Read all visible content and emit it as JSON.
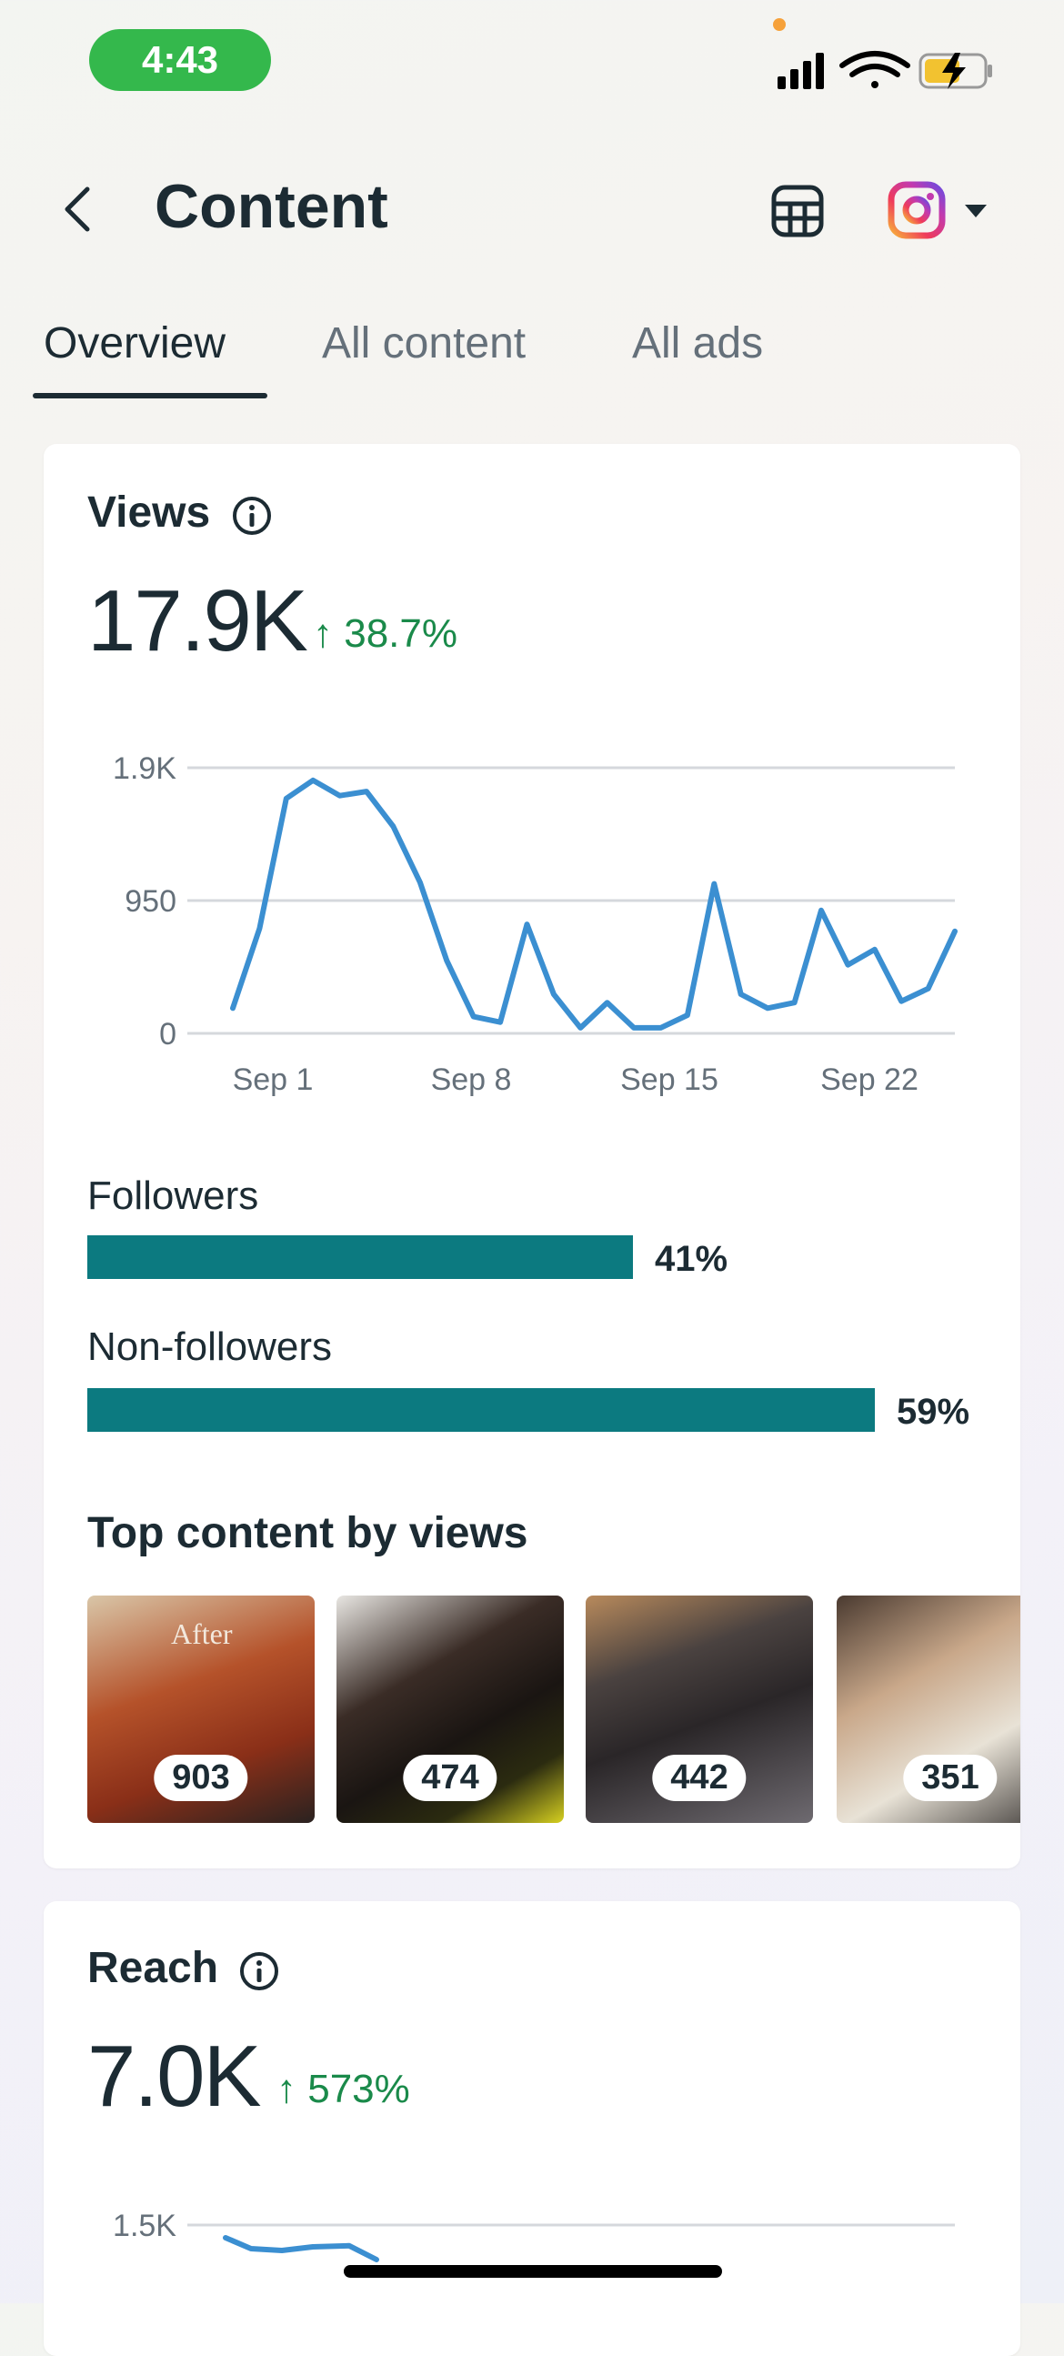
{
  "status_bar": {
    "time": "4:43"
  },
  "header": {
    "title": "Content"
  },
  "tabs": [
    {
      "label": "Overview"
    },
    {
      "label": "All content"
    },
    {
      "label": "All ads"
    }
  ],
  "views": {
    "title": "Views",
    "value": "17.9K",
    "delta": "↑ 38.7%",
    "chart_data": {
      "type": "line",
      "y_ticks": [
        "1.9K",
        "950",
        "0"
      ],
      "x_ticks": [
        "Sep 1",
        "Sep 8",
        "Sep 15",
        "Sep 22"
      ],
      "ylim": [
        0,
        1900
      ],
      "values": [
        180,
        750,
        1680,
        1810,
        1700,
        1730,
        1480,
        1080,
        520,
        120,
        80,
        780,
        280,
        40,
        220,
        40,
        40,
        130,
        1070,
        280,
        180,
        220,
        880,
        490,
        600,
        230,
        320,
        730
      ],
      "series_color": "#3b8fd1"
    },
    "followers": {
      "label": "Followers",
      "pct": "41%",
      "value": 41
    },
    "non_followers": {
      "label": "Non-followers",
      "pct": "59%",
      "value": 59
    },
    "top_content_title": "Top content by views",
    "top_content": [
      {
        "count": "903",
        "caption": "After"
      },
      {
        "count": "474"
      },
      {
        "count": "442"
      },
      {
        "count": "351"
      }
    ]
  },
  "reach": {
    "title": "Reach",
    "value": "7.0K",
    "delta": "↑ 573%",
    "chart_data": {
      "type": "line",
      "y_ticks": [
        "1.5K"
      ],
      "values": [
        1500,
        1200,
        1150,
        1250,
        1280,
        900
      ],
      "series_color": "#3b8fd1"
    }
  },
  "colors": {
    "accent_teal": "#0c7a80",
    "positive_green": "#1a8a4a",
    "line_blue": "#3b8fd1"
  }
}
